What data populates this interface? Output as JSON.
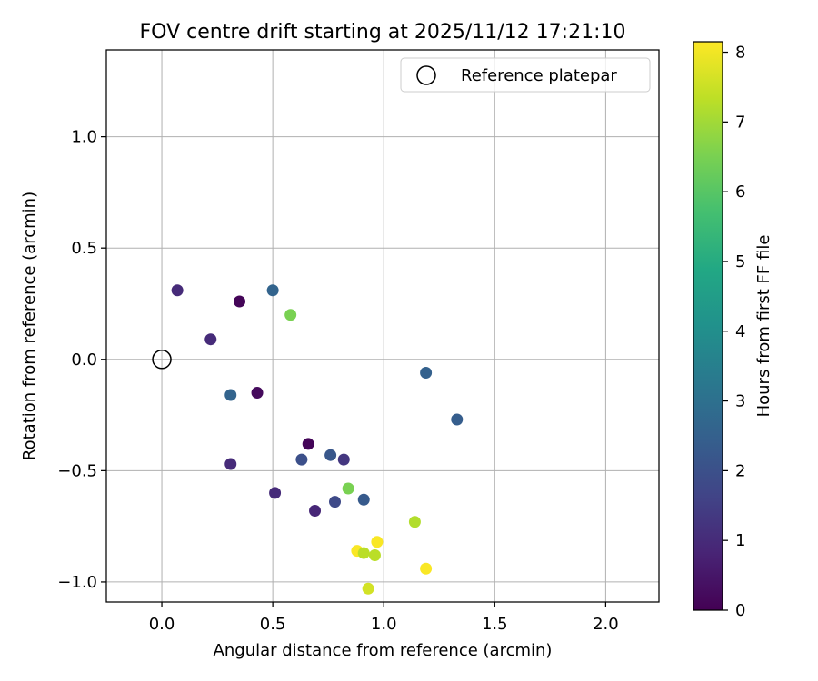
{
  "chart_data": {
    "type": "scatter",
    "title": "FOV centre drift starting at 2025/11/12 17:21:10",
    "xlabel": "Angular distance from reference (arcmin)",
    "ylabel": "Rotation from reference (arcmin)",
    "xlim": [
      -0.25,
      2.24
    ],
    "ylim": [
      -1.09,
      1.39
    ],
    "x_ticks": [
      0.0,
      0.5,
      1.0,
      1.5,
      2.0
    ],
    "x_tick_labels": [
      "0.0",
      "0.5",
      "1.0",
      "1.5",
      "2.0"
    ],
    "y_ticks": [
      -1.0,
      -0.5,
      0.0,
      0.5,
      1.0
    ],
    "y_tick_labels": [
      "−1.0",
      "−0.5",
      "0.0",
      "0.5",
      "1.0"
    ],
    "grid": true,
    "legend": {
      "location": "top-right",
      "entries": [
        "Reference platepar"
      ]
    },
    "reference_point": {
      "x": 0.0,
      "y": 0.0,
      "label": "Reference platepar"
    },
    "colorbar": {
      "label": "Hours from first FF file",
      "colormap": "viridis",
      "range": [
        0,
        8.15
      ],
      "ticks": [
        0,
        1,
        2,
        3,
        4,
        5,
        6,
        7,
        8
      ],
      "tick_labels": [
        "0",
        "1",
        "2",
        "3",
        "4",
        "5",
        "6",
        "7",
        "8"
      ]
    },
    "points": [
      {
        "x": 0.07,
        "y": 0.31,
        "hours": 1.0
      },
      {
        "x": 0.35,
        "y": 0.26,
        "hours": 0.1
      },
      {
        "x": 0.5,
        "y": 0.31,
        "hours": 2.6
      },
      {
        "x": 0.58,
        "y": 0.2,
        "hours": 6.5
      },
      {
        "x": 0.22,
        "y": 0.09,
        "hours": 1.0
      },
      {
        "x": 0.31,
        "y": -0.16,
        "hours": 2.6
      },
      {
        "x": 0.43,
        "y": -0.15,
        "hours": 0.2
      },
      {
        "x": 1.19,
        "y": -0.06,
        "hours": 2.5
      },
      {
        "x": 1.33,
        "y": -0.27,
        "hours": 2.4
      },
      {
        "x": 0.66,
        "y": -0.38,
        "hours": 0.1
      },
      {
        "x": 0.76,
        "y": -0.43,
        "hours": 2.2
      },
      {
        "x": 0.82,
        "y": -0.45,
        "hours": 1.3
      },
      {
        "x": 0.63,
        "y": -0.45,
        "hours": 2.0
      },
      {
        "x": 0.31,
        "y": -0.47,
        "hours": 1.0
      },
      {
        "x": 0.51,
        "y": -0.6,
        "hours": 1.0
      },
      {
        "x": 0.84,
        "y": -0.58,
        "hours": 6.5
      },
      {
        "x": 0.91,
        "y": -0.63,
        "hours": 2.3
      },
      {
        "x": 0.78,
        "y": -0.64,
        "hours": 1.8
      },
      {
        "x": 0.69,
        "y": -0.68,
        "hours": 0.9
      },
      {
        "x": 1.14,
        "y": -0.73,
        "hours": 7.2
      },
      {
        "x": 0.97,
        "y": -0.82,
        "hours": 8.1
      },
      {
        "x": 0.88,
        "y": -0.86,
        "hours": 8.1
      },
      {
        "x": 0.91,
        "y": -0.87,
        "hours": 7.3
      },
      {
        "x": 0.96,
        "y": -0.88,
        "hours": 7.3
      },
      {
        "x": 1.19,
        "y": -0.94,
        "hours": 8.1
      },
      {
        "x": 0.93,
        "y": -1.03,
        "hours": 7.6
      }
    ]
  }
}
